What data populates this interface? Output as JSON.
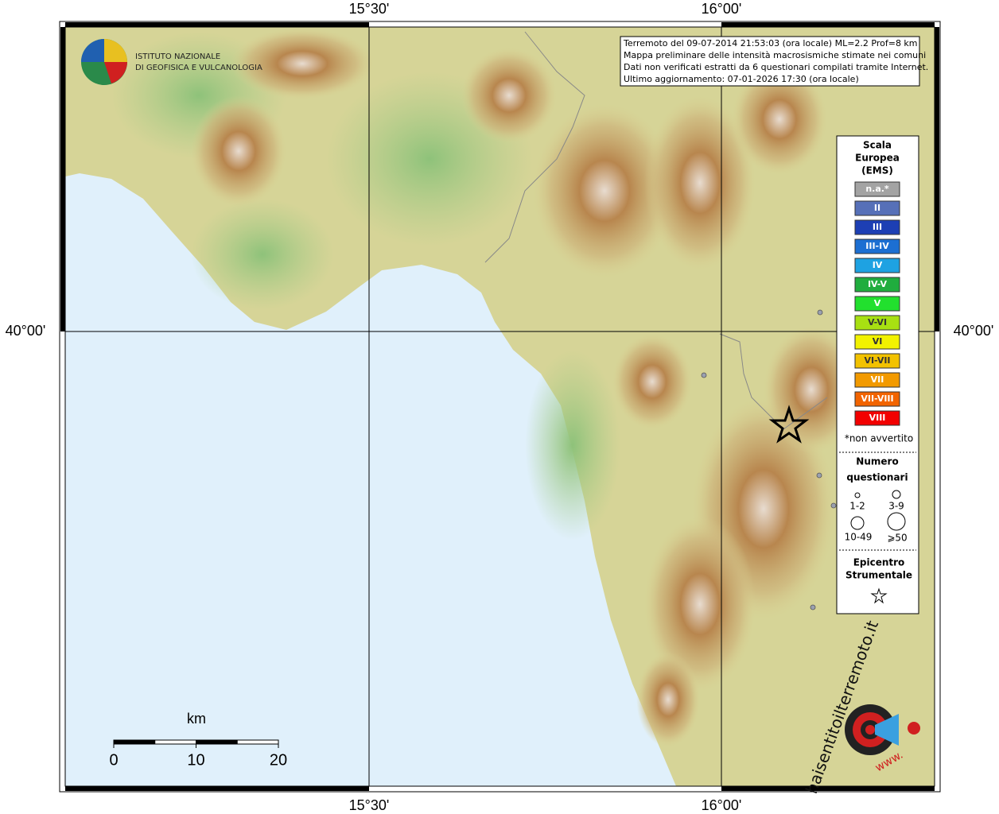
{
  "graticule": {
    "lon_labels": [
      "15°30'",
      "16°00'"
    ],
    "lat_labels": [
      "40°00'"
    ]
  },
  "info": [
    "Terremoto del 09-07-2014 21:53:03 (ora locale) ML=2.2 Prof=8 km",
    "Mappa preliminare delle intensità macrosismiche stimate nei comuni",
    "Dati non verificati estratti da 6 questionari compilati tramite Internet.",
    "Ultimo aggiornamento: 07-01-2026 17:30 (ora locale)"
  ],
  "logo": {
    "line1": "ISTITUTO NAZIONALE",
    "line2": "DI GEOFISICA E VULCANOLOGIA"
  },
  "legend": {
    "title": [
      "Scala",
      "Europea",
      "(EMS)"
    ],
    "items": [
      {
        "label": "n.a.*",
        "color": "#a3a3a3"
      },
      {
        "label": "II",
        "color": "#5670b8"
      },
      {
        "label": "III",
        "color": "#1d3fb4"
      },
      {
        "label": "III-IV",
        "color": "#1c6fd2"
      },
      {
        "label": "IV",
        "color": "#1ea2e2"
      },
      {
        "label": "IV-V",
        "color": "#20ad3e"
      },
      {
        "label": "V",
        "color": "#22e02e"
      },
      {
        "label": "V-VI",
        "color": "#a8e012"
      },
      {
        "label": "VI",
        "color": "#f2f200"
      },
      {
        "label": "VI-VII",
        "color": "#f2c200"
      },
      {
        "label": "VII",
        "color": "#f29a00"
      },
      {
        "label": "VII-VIII",
        "color": "#f26400"
      },
      {
        "label": "VIII",
        "color": "#f20000"
      }
    ],
    "note": "*non avvertito",
    "count_title": [
      "Numero",
      "questionari"
    ],
    "count_classes": [
      "1-2",
      "3-9",
      "10-49",
      "⩾50"
    ],
    "epicenter_title": [
      "Epicentro",
      "Strumentale"
    ]
  },
  "scale_bar": {
    "unit": "km",
    "ticks": [
      0,
      10,
      20
    ]
  },
  "site_logo": {
    "name": "haisentitoilterremoto.it",
    "prefix": "www."
  }
}
